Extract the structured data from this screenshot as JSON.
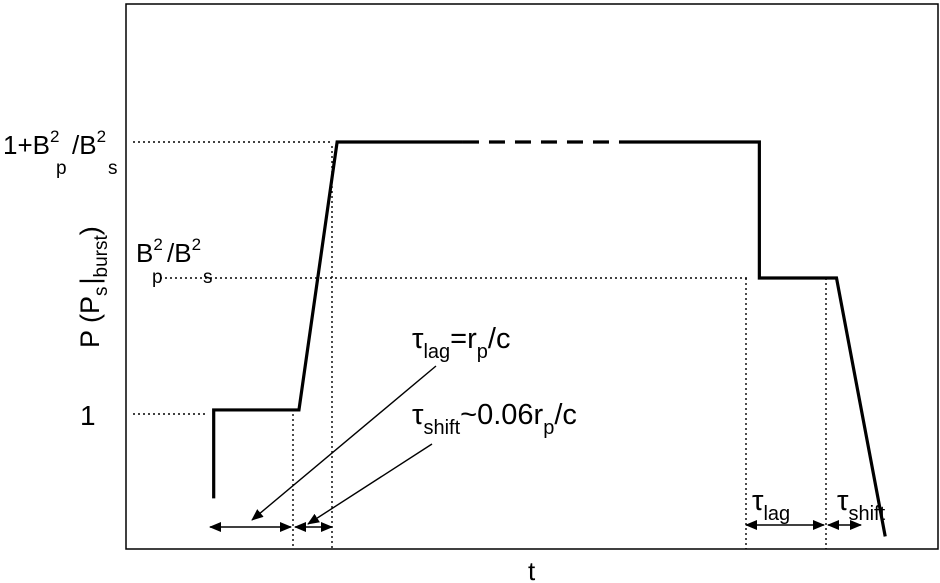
{
  "chart_data": {
    "type": "line",
    "xlabel": "t",
    "ylabel": {
      "main": "P (P",
      "sub1": "s",
      "bar": "|",
      "sub2": "burst",
      "close": ")"
    },
    "y_ticks": [
      {
        "value": 1,
        "label": "1"
      },
      {
        "value": 2,
        "label": "B²p/B²s",
        "rich": {
          "b1": "B",
          "e1": "2",
          "s1": "p",
          "slash": "/B",
          "e2": "2",
          "s2": "s"
        }
      },
      {
        "value": 3,
        "label": "1+B²p/B²s",
        "rich": {
          "pre": "1+B",
          "e1": "2",
          "s1": "p",
          "slash": "/B",
          "e2": "2",
          "s2": "s"
        }
      }
    ],
    "ylim": [
      0.1,
      4.2
    ],
    "xlim": [
      0,
      10
    ],
    "series": [
      {
        "style": "solid",
        "points": [
          [
            1.08,
            0.38
          ],
          [
            1.08,
            1.03
          ],
          [
            2.13,
            1.03
          ],
          [
            2.6,
            3.0
          ],
          [
            4.15,
            3.0
          ]
        ]
      },
      {
        "style": "dashed",
        "points": [
          [
            4.15,
            3.0
          ],
          [
            6.25,
            3.0
          ]
        ]
      },
      {
        "style": "solid",
        "points": [
          [
            6.25,
            3.0
          ],
          [
            7.8,
            3.0
          ],
          [
            7.8,
            2.0
          ],
          [
            8.75,
            2.0
          ],
          [
            9.35,
            0.1
          ]
        ]
      }
    ],
    "annotations": {
      "tau_lag": {
        "tau": "τ",
        "sub": "lag",
        "rest": "=r",
        "rsub": "p",
        "tail": "/c"
      },
      "tau_shift": {
        "tau": "τ",
        "sub": "shift",
        "rest": "~0.06r",
        "rsub": "p",
        "tail": "/c"
      },
      "tau_lag_right": {
        "tau": "τ",
        "sub": "lag"
      },
      "tau_shift_right": {
        "tau": "τ",
        "sub": "shift"
      }
    },
    "grid": false
  }
}
